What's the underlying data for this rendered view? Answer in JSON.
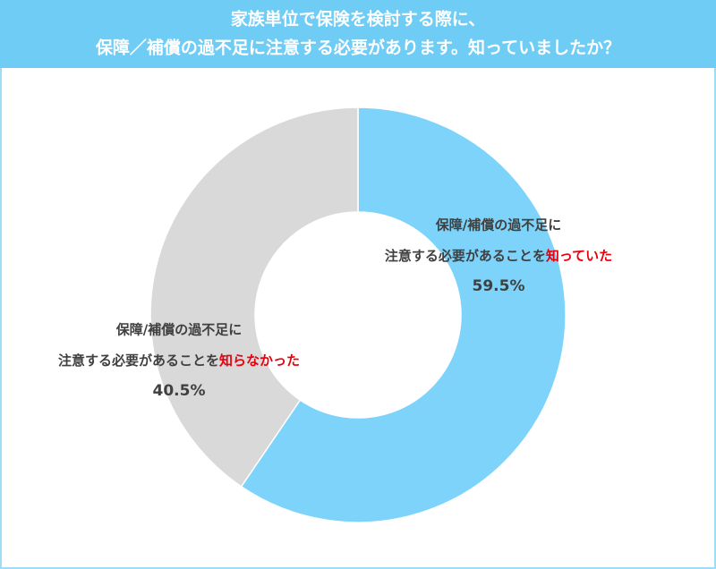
{
  "chart_data": {
    "type": "donut",
    "title": [
      "家族単位で保険を検討する際に、",
      "保障／補償の過不足に注意する必要があります。知っていましたか？"
    ],
    "categories": [
      [
        "保障/補償の過不足に",
        "注意する必要があることを",
        "知っていた"
      ],
      [
        "保障/補償の過不足に",
        "注意する必要があることを",
        "知らなかった"
      ]
    ],
    "values": [
      59.5,
      40.5
    ],
    "value_labels": [
      "59.5%",
      "40.5%"
    ],
    "colors": [
      "#7dd3f9",
      "#d9d9d9"
    ],
    "highlight_color": "#e8000b",
    "header_color": "#6fcdf5"
  }
}
